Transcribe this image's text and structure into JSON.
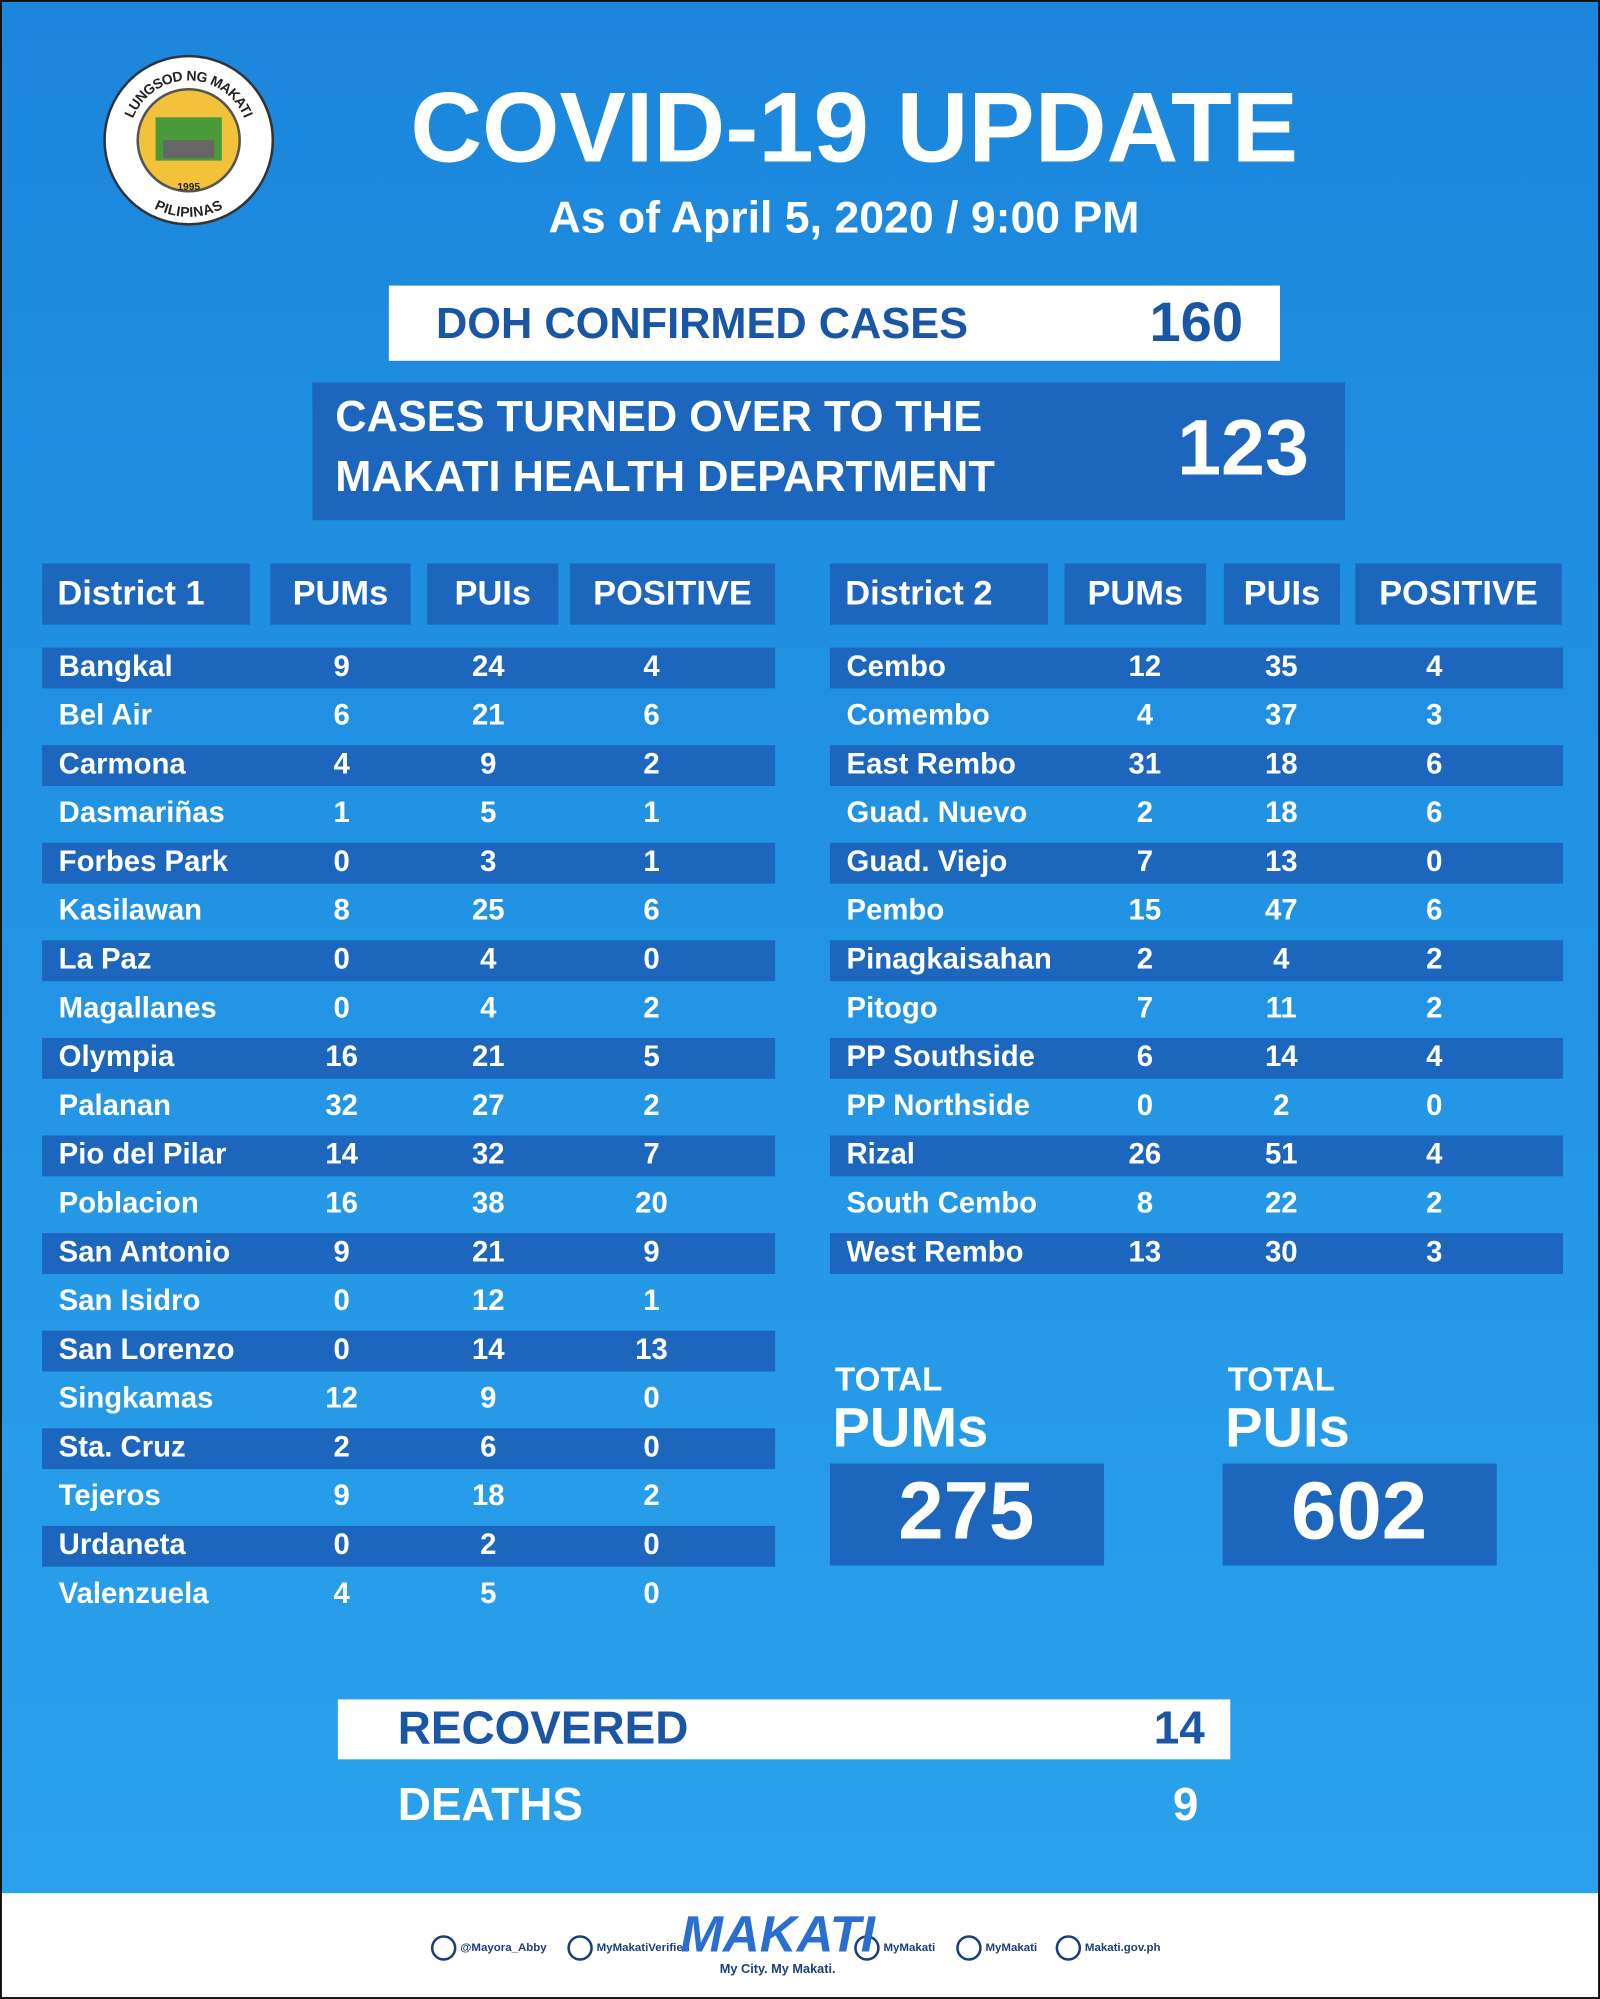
{
  "header": {
    "title": "COVID-19 UPDATE",
    "subtitle": "As of April 5, 2020 / 9:00 PM",
    "seal": {
      "top": "LUNGSOD NG MAKATI",
      "bottom": "PILIPINAS",
      "year": "1995"
    }
  },
  "doh": {
    "label": "DOH CONFIRMED CASES",
    "value": 160
  },
  "turned_over": {
    "lines": [
      "CASES TURNED OVER TO THE",
      "MAKATI HEALTH DEPARTMENT"
    ],
    "value": 123
  },
  "districts": [
    {
      "columns": [
        "District 1",
        "PUMs",
        "PUIs",
        "POSITIVE"
      ],
      "rows": [
        [
          "Bangkal",
          9,
          24,
          4
        ],
        [
          "Bel Air",
          6,
          21,
          6
        ],
        [
          "Carmona",
          4,
          9,
          2
        ],
        [
          "Dasmariñas",
          1,
          5,
          1
        ],
        [
          "Forbes Park",
          0,
          3,
          1
        ],
        [
          "Kasilawan",
          8,
          25,
          6
        ],
        [
          "La Paz",
          0,
          4,
          0
        ],
        [
          "Magallanes",
          0,
          4,
          2
        ],
        [
          "Olympia",
          16,
          21,
          5
        ],
        [
          "Palanan",
          32,
          27,
          2
        ],
        [
          "Pio del Pilar",
          14,
          32,
          7
        ],
        [
          "Poblacion",
          16,
          38,
          20
        ],
        [
          "San Antonio",
          9,
          21,
          9
        ],
        [
          "San Isidro",
          0,
          12,
          1
        ],
        [
          "San Lorenzo",
          0,
          14,
          13
        ],
        [
          "Singkamas",
          12,
          9,
          0
        ],
        [
          "Sta. Cruz",
          2,
          6,
          0
        ],
        [
          "Tejeros",
          9,
          18,
          2
        ],
        [
          "Urdaneta",
          0,
          2,
          0
        ],
        [
          "Valenzuela",
          4,
          5,
          0
        ]
      ]
    },
    {
      "columns": [
        "District 2",
        "PUMs",
        "PUIs",
        "POSITIVE"
      ],
      "rows": [
        [
          "Cembo",
          12,
          35,
          4
        ],
        [
          "Comembo",
          4,
          37,
          3
        ],
        [
          "East Rembo",
          31,
          18,
          6
        ],
        [
          "Guad. Nuevo",
          2,
          18,
          6
        ],
        [
          "Guad. Viejo",
          7,
          13,
          0
        ],
        [
          "Pembo",
          15,
          47,
          6
        ],
        [
          "Pinagkaisahan",
          2,
          4,
          2
        ],
        [
          "Pitogo",
          7,
          11,
          2
        ],
        [
          "PP Southside",
          6,
          14,
          4
        ],
        [
          "PP Northside",
          0,
          2,
          0
        ],
        [
          "Rizal",
          26,
          51,
          4
        ],
        [
          "South Cembo",
          8,
          22,
          2
        ],
        [
          "West Rembo",
          13,
          30,
          3
        ]
      ]
    }
  ],
  "totals": [
    {
      "caption": "TOTAL",
      "label": "PUMs",
      "value": 275
    },
    {
      "caption": "TOTAL",
      "label": "PUIs",
      "value": 602
    }
  ],
  "recovered": {
    "label": "RECOVERED",
    "value": 14
  },
  "deaths": {
    "label": "DEATHS",
    "value": 9
  },
  "footer": {
    "handles": [
      "@Mayora_Abby",
      "MyMakatiVerified",
      "MyMakati",
      "MyMakati",
      "Makati.gov.ph"
    ],
    "logo": "MAKATI",
    "tagline": "My City. My Makati."
  }
}
